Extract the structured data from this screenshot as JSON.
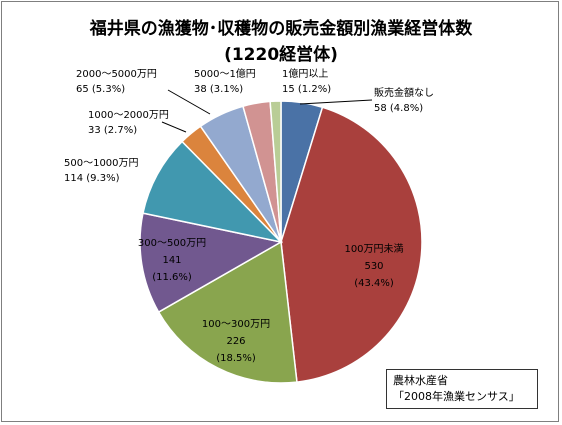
{
  "chart_data": {
    "type": "pie",
    "title": "福井県の漁獲物･収穫物の販売金額別漁業経営体数",
    "subtitle": "(1220経営体)",
    "slices": [
      {
        "category": "販売金額なし",
        "value": 58,
        "pct": "(4.8%)",
        "color": "#4a72a6"
      },
      {
        "category": "100万円未満",
        "value": 530,
        "pct": "(43.4%)",
        "color": "#a9403d"
      },
      {
        "category": "100～300万円",
        "value": 226,
        "pct": "(18.5%)",
        "color": "#89a54e"
      },
      {
        "category": "300～500万円",
        "value": 141,
        "pct": "(11.6%)",
        "color": "#71588f"
      },
      {
        "category": "500～1000万円",
        "value": 114,
        "pct": "(9.3%)",
        "color": "#4198af"
      },
      {
        "category": "1000～2000万円",
        "value": 33,
        "pct": "(2.7%)",
        "color": "#db843d"
      },
      {
        "category": "2000～5000万円",
        "value": 65,
        "pct": "(5.3%)",
        "color": "#93a9cf"
      },
      {
        "category": "5000～1億円",
        "value": 38,
        "pct": "(3.1%)",
        "color": "#d19392"
      },
      {
        "category": "1億円以上",
        "value": 15,
        "pct": "(1.2%)",
        "color": "#b9cd96"
      }
    ]
  },
  "source": {
    "line1": "農林水産省",
    "line2": "「2008年漁業センサス」"
  }
}
